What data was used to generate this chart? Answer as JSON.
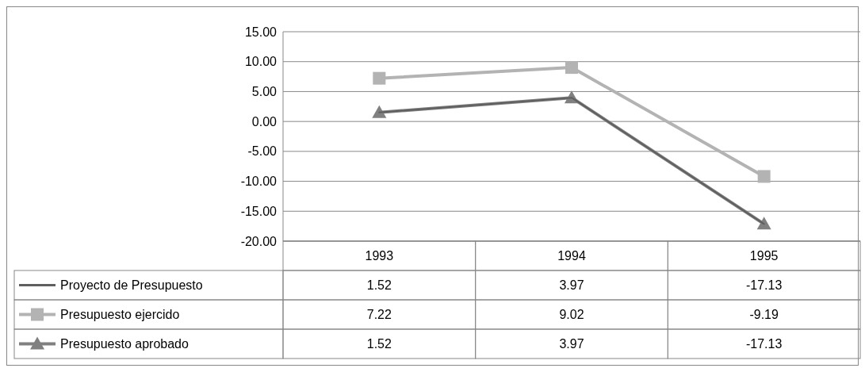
{
  "chart_data": {
    "type": "line",
    "categories": [
      "1993",
      "1994",
      "1995"
    ],
    "series": [
      {
        "name": "Proyecto de Presupuesto",
        "color": "#5f5f5f",
        "marker": "none",
        "values": [
          1.52,
          3.97,
          -17.13
        ]
      },
      {
        "name": "Presupuesto ejercido",
        "color": "#b3b3b3",
        "marker": "square",
        "values": [
          7.22,
          9.02,
          -9.19
        ]
      },
      {
        "name": "Presupuesto aprobado",
        "color": "#808080",
        "marker": "triangle",
        "values": [
          1.52,
          3.97,
          -17.13
        ]
      }
    ],
    "ylim": [
      -20,
      15
    ],
    "yticks": [
      {
        "value": -20,
        "label": "-20.00"
      },
      {
        "value": -15,
        "label": "-15.00"
      },
      {
        "value": -10,
        "label": "-10.00"
      },
      {
        "value": -5,
        "label": "-5.00"
      },
      {
        "value": 0,
        "label": "0.00"
      },
      {
        "value": 5,
        "label": "5.00"
      },
      {
        "value": 10,
        "label": "10.00"
      },
      {
        "value": 15,
        "label": "15.00"
      }
    ],
    "grid": "y",
    "legend": "bottom",
    "data_labels": true,
    "line_style": "solid"
  }
}
